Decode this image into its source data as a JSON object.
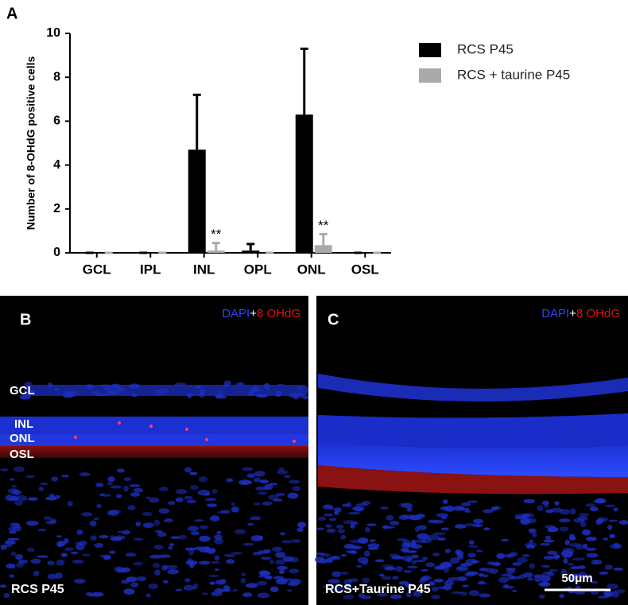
{
  "chart_data": {
    "type": "bar",
    "panel_label": "A",
    "y_label": "Number of 8-OHdG positive cells",
    "categories": [
      "GCL",
      "IPL",
      "INL",
      "OPL",
      "ONL",
      "OSL"
    ],
    "series": [
      {
        "name": "RCS P45",
        "color": "#000000",
        "values": [
          0,
          0,
          4.7,
          0.1,
          6.3,
          0
        ],
        "errors": [
          0,
          0,
          2.5,
          0.3,
          3.0,
          0
        ]
      },
      {
        "name": "RCS + taurine P45",
        "color": "#aaaaaa",
        "values": [
          0,
          0,
          0.1,
          0,
          0.35,
          0
        ],
        "errors": [
          0,
          0,
          0.35,
          0,
          0.5,
          0
        ]
      }
    ],
    "annotations": [
      {
        "text": "**",
        "x": "INL"
      },
      {
        "text": "**",
        "x": "ONL"
      }
    ],
    "ylim": [
      0,
      10
    ],
    "yticks": [
      0,
      2,
      4,
      6,
      8,
      10
    ],
    "legend": "top-right"
  },
  "images": [
    {
      "panel_label": "B",
      "stain_1": "DAPI",
      "plus": "+",
      "stain_2": "8 OHdG",
      "caption": "RCS P45",
      "layers": [
        "GCL",
        "INL",
        "ONL",
        "OSL"
      ]
    },
    {
      "panel_label": "C",
      "stain_1": "DAPI",
      "plus": "+",
      "stain_2": "8 OHdG",
      "caption": "RCS+Taurine P45",
      "scale_bar": "50μm"
    }
  ]
}
